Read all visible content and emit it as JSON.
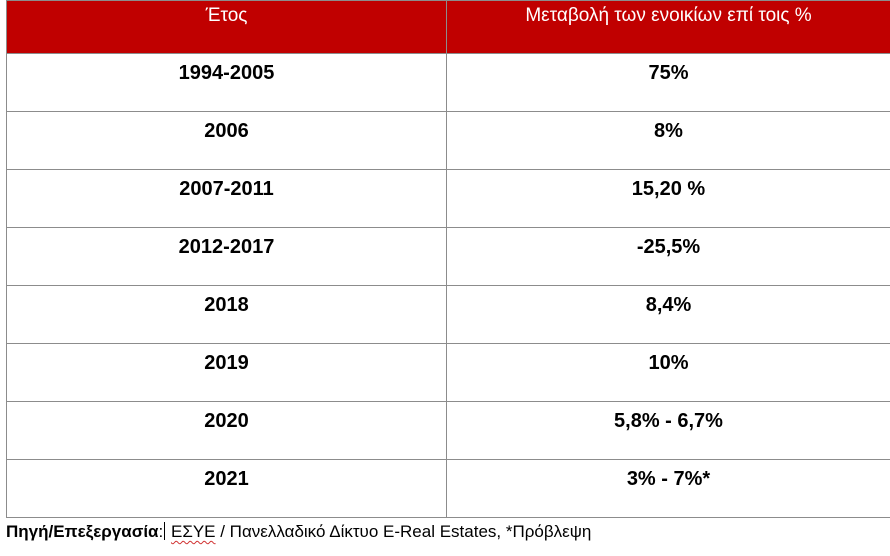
{
  "table": {
    "headers": [
      "Έτος",
      "Μεταβολή των ενοικίων επί τοις %"
    ],
    "rows": [
      [
        "1994-2005",
        "75%"
      ],
      [
        "2006",
        "8%"
      ],
      [
        "2007-2011",
        "15,20 %"
      ],
      [
        "2012-2017",
        "-25,5%"
      ],
      [
        "2018",
        "8,4%"
      ],
      [
        "2019",
        "10%"
      ],
      [
        "2020",
        "5,8% - 6,7%"
      ],
      [
        "2021",
        "3% - 7%*"
      ]
    ]
  },
  "source": {
    "label": "Πηγή/Επεξεργασία",
    "colon": ":",
    "acronym": "ΕΣΥΕ",
    "rest": " / Πανελλαδικό Δίκτυο E-Real Estates, *Πρόβλεψη"
  },
  "colors": {
    "header_bg": "#c00000",
    "header_text": "#ffffff",
    "border": "#8c8c8c"
  }
}
